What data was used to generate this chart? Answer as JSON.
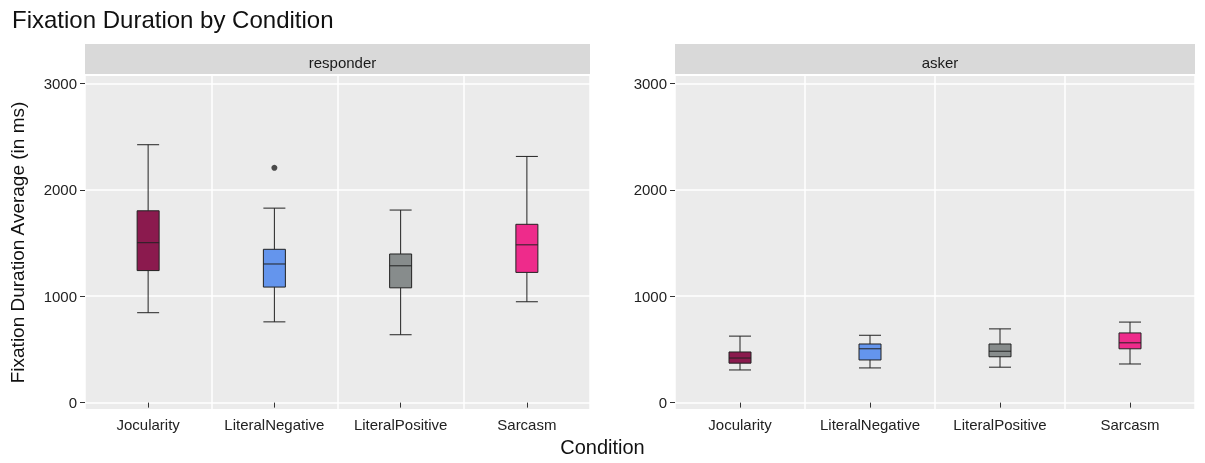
{
  "chart_data": [
    {
      "type": "box",
      "title": "Fixation Duration by Condition",
      "subtitle": "responder",
      "xlabel": "Condition",
      "ylabel": "Fixation Duration Average (in ms)",
      "categories": [
        "Jocularity",
        "LiteralNegative",
        "LiteralPositive",
        "Sarcasm"
      ],
      "colors": [
        "#8b1a4e",
        "#6495ed",
        "#878c8c",
        "#ee2b8b"
      ],
      "boxes": [
        {
          "low": 845,
          "q1": 1241,
          "median": 1503,
          "q3": 1803,
          "high": 2424
        },
        {
          "low": 759,
          "q1": 1086,
          "median": 1303,
          "q3": 1441,
          "high": 1828,
          "outliers": [
            2207
          ]
        },
        {
          "low": 638,
          "q1": 1079,
          "median": 1286,
          "q3": 1397,
          "high": 1810
        },
        {
          "low": 948,
          "q1": 1224,
          "median": 1483,
          "q3": 1676,
          "high": 2314
        }
      ],
      "ylim": [
        -60,
        3070
      ],
      "yticks": [
        0,
        1000,
        2000,
        3000
      ],
      "grid": true
    },
    {
      "type": "box",
      "title": "asker",
      "categories": [
        "Jocularity",
        "LiteralNegative",
        "LiteralPositive",
        "Sarcasm"
      ],
      "colors": [
        "#8b1a4e",
        "#6495ed",
        "#878c8c",
        "#ee2b8b"
      ],
      "boxes": [
        {
          "low": 307,
          "q1": 371,
          "median": 419,
          "q3": 476,
          "high": 625
        },
        {
          "low": 326,
          "q1": 401,
          "median": 506,
          "q3": 551,
          "high": 633
        },
        {
          "low": 333,
          "q1": 431,
          "median": 483,
          "q3": 551,
          "high": 693
        },
        {
          "low": 363,
          "q1": 506,
          "median": 562,
          "q3": 655,
          "high": 757
        }
      ],
      "ylim": [
        -60,
        3070
      ],
      "yticks": [
        0,
        1000,
        2000,
        3000
      ],
      "grid": true
    }
  ]
}
